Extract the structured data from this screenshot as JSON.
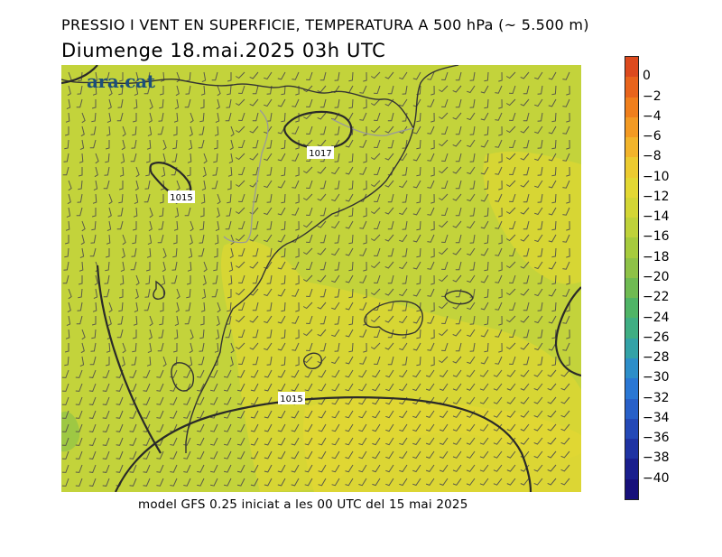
{
  "title_line1": "PRESSIO I VENT EN SUPERFICIE, TEMPERATURA A 500 hPa (~ 5.500 m)",
  "title_line2": "Diumenge  18.mai.2025 03h UTC",
  "footer": "model GFS 0.25 iniciat a les 00 UTC del 15 mai 2025",
  "logo": "ara.cat",
  "isobar_labels": [
    "1017",
    "1015",
    "1015"
  ],
  "colorbar": {
    "labels": [
      "0",
      "−2",
      "−4",
      "−6",
      "−8",
      "−10",
      "−12",
      "−14",
      "−16",
      "−18",
      "−20",
      "−22",
      "−24",
      "−26",
      "−28",
      "−30",
      "−32",
      "−34",
      "−36",
      "−38",
      "−40"
    ],
    "colors": [
      "#dc4a1e",
      "#e8641c",
      "#f07f1c",
      "#f39a23",
      "#f2b42b",
      "#eccb30",
      "#e3d833",
      "#d3d635",
      "#bfd23a",
      "#a6cb3d",
      "#8ec247",
      "#6fbb52",
      "#4fb466",
      "#3fae83",
      "#33a2a7",
      "#2d8ec9",
      "#2a77d4",
      "#2860c8",
      "#2449b6",
      "#1f33a2",
      "#1a1f8d",
      "#17107a"
    ]
  },
  "colors": {
    "field_main": "#c3d33b",
    "field_warm": "#dbd634",
    "field_cold": "#9ec843",
    "barb": "#5a5a4a",
    "isobar": "#2a2a2a",
    "coast": "#333333",
    "border": "#9a9a9a"
  }
}
